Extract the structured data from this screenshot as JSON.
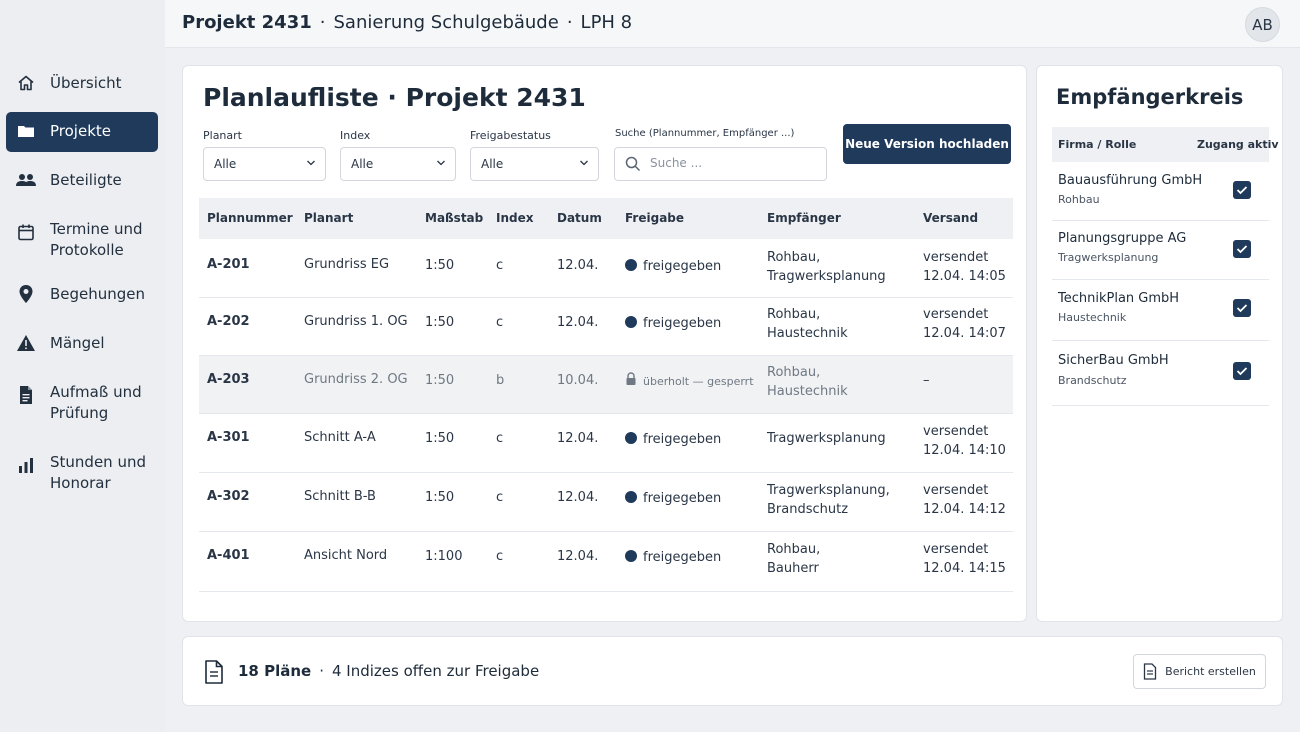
{
  "header": {
    "project": "Projekt 2431",
    "title": "Sanierung Schulgebäude",
    "phase": "LPH 8",
    "avatar": "AB"
  },
  "sidebar": {
    "items": [
      {
        "label": "Übersicht",
        "icon": "home-icon"
      },
      {
        "label": "Projekte",
        "icon": "folder-icon",
        "active": true
      },
      {
        "label": "Beteiligte",
        "icon": "people-icon"
      },
      {
        "label": "Termine und Protokolle",
        "icon": "calendar-icon"
      },
      {
        "label": "Begehungen",
        "icon": "map-pin-icon"
      },
      {
        "label": "Mängel",
        "icon": "warning-icon"
      },
      {
        "label": "Aufmaß und Prüfung",
        "icon": "document-icon"
      },
      {
        "label": "Stunden und Honorar",
        "icon": "bar-chart-icon"
      }
    ]
  },
  "main": {
    "title": "Planlaufliste · Projekt 2431",
    "filters": {
      "planart": {
        "label": "Planart",
        "value": "Alle"
      },
      "index": {
        "label": "Index",
        "value": "Alle"
      },
      "status": {
        "label": "Freigabestatus",
        "value": "Alle"
      },
      "search": {
        "label": "Suche (Plannummer, Empfänger ...)",
        "placeholder": "Suche ..."
      }
    },
    "upload_button": "Neue Version hochladen",
    "columns": [
      "Plannummer",
      "Planart",
      "Maßstab",
      "Index",
      "Datum",
      "Freigabe",
      "Empfänger",
      "Versand"
    ],
    "rows": [
      {
        "nr": "A-201",
        "art": "Grundriss EG",
        "massstab": "1:50",
        "index": "c",
        "datum": "12.04.",
        "freigabe": "freigegeben",
        "empf1": "Rohbau,",
        "empf2": "Tragwerksplanung",
        "v1": "versendet",
        "v2": "12.04.  14:05"
      },
      {
        "nr": "A-202",
        "art": "Grundriss 1. OG",
        "massstab": "1:50",
        "index": "c",
        "datum": "12.04.",
        "freigabe": "freigegeben",
        "empf1": "Rohbau,",
        "empf2": "Haustechnik",
        "v1": "versendet",
        "v2": "12.04.  14:07"
      },
      {
        "nr": "A-203",
        "art": "Grundriss 2. OG",
        "massstab": "1:50",
        "index": "b",
        "datum": "10.04.",
        "freigabe": "überholt — gesperrt",
        "empf1": "Rohbau,",
        "empf2": "Haustechnik",
        "v1": "–",
        "v2": ""
      },
      {
        "nr": "A-301",
        "art": "Schnitt A-A",
        "massstab": "1:50",
        "index": "c",
        "datum": "12.04.",
        "freigabe": "freigegeben",
        "empf1": "Tragwerksplanung",
        "empf2": "",
        "v1": "versendet",
        "v2": "12.04.  14:10"
      },
      {
        "nr": "A-302",
        "art": "Schnitt B-B",
        "massstab": "1:50",
        "index": "c",
        "datum": "12.04.",
        "freigabe": "freigegeben",
        "empf1": "Tragwerksplanung,",
        "empf2": "Brandschutz",
        "v1": "versendet",
        "v2": "12.04.  14:12"
      },
      {
        "nr": "A-401",
        "art": "Ansicht Nord",
        "massstab": "1:100",
        "index": "c",
        "datum": "12.04.",
        "freigabe": "freigegeben",
        "empf1": "Rohbau,",
        "empf2": "Bauherr",
        "v1": "versendet",
        "v2": "12.04.  14:15"
      }
    ]
  },
  "recipients": {
    "title": "Empfängerkreis",
    "col_firm": "Firma / Rolle",
    "col_access": "Zugang aktiv",
    "items": [
      {
        "name": "Bauausführung GmbH",
        "role": "Rohbau",
        "active": true
      },
      {
        "name": "Planungsgruppe AG",
        "role": "Tragwerksplanung",
        "active": true
      },
      {
        "name": "TechnikPlan GmbH",
        "role": "Haustechnik",
        "active": true
      },
      {
        "name": "SicherBau GmbH",
        "role": "Brandschutz",
        "active": true
      }
    ]
  },
  "footer": {
    "count": "18 Pläne",
    "open": "4 Indizes offen zur Freigabe",
    "report_button": "Bericht erstellen"
  },
  "colors": {
    "accent": "#1f3a5b",
    "background": "#eef0f3"
  }
}
